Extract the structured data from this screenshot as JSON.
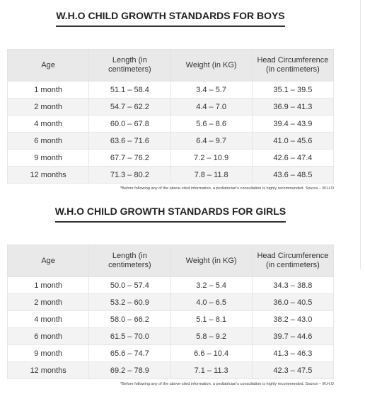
{
  "sections": [
    {
      "title": "W.H.O CHILD GROWTH STANDARDS FOR BOYS",
      "headers": [
        "Age",
        "Length (in centimeters)",
        "Weight (in KG)",
        "Head Circumference (in centimeters)"
      ],
      "rows": [
        [
          "1 month",
          "51.1 – 58.4",
          "3.4 – 5.7",
          "35.1 – 39.5"
        ],
        [
          "2 month",
          "54.7 – 62.2",
          "4.4 – 7.0",
          "36.9 – 41.3"
        ],
        [
          "4 month",
          "60.0 – 67.8",
          "5.6 – 8.6",
          "39.4 – 43.9"
        ],
        [
          "6 month",
          "63.6 – 71.6",
          "6.4 – 9.7",
          "41.0 – 45.6"
        ],
        [
          "9 month",
          "67.7 – 76.2",
          "7.2 – 10.9",
          "42.6 – 47.4"
        ],
        [
          "12 months",
          "71.3 – 80.2",
          "7.8 – 11.8",
          "43.6 – 48.5"
        ]
      ],
      "footnote": "*Before following any of the above-cited information, a pediatrician's consultation is highly recommended. Source – W.H.O"
    },
    {
      "title": "W.H.O CHILD GROWTH STANDARDS FOR GIRLS",
      "headers": [
        "Age",
        "Length (in centimeters)",
        "Weight (in KG)",
        "Head Circumference (in centimeters)"
      ],
      "rows": [
        [
          "1 month",
          "50.0 – 57.4",
          "3.2 – 5.4",
          "34.3 – 38.8"
        ],
        [
          "2 month",
          "53.2 – 60.9",
          "4.0 – 6.5",
          "36.0 – 40.5"
        ],
        [
          "4 month",
          "58.0 – 66.2",
          "5.1 – 8.1",
          "38.2 – 43.0"
        ],
        [
          "6 month",
          "61.5 – 70.0",
          "5.8 – 9.2",
          "39.7 – 44.6"
        ],
        [
          "9 month",
          "65.6 – 74.7",
          "6.6 – 10.4",
          "41.3 – 46.3"
        ],
        [
          "12 months",
          "69.2 – 78.9",
          "7.1 – 11.3",
          "42.3 – 47.5"
        ]
      ],
      "footnote": "*Before following any of the above-cited information, a pediatrician's consultation is highly recommended. Source – W.H.O"
    }
  ]
}
